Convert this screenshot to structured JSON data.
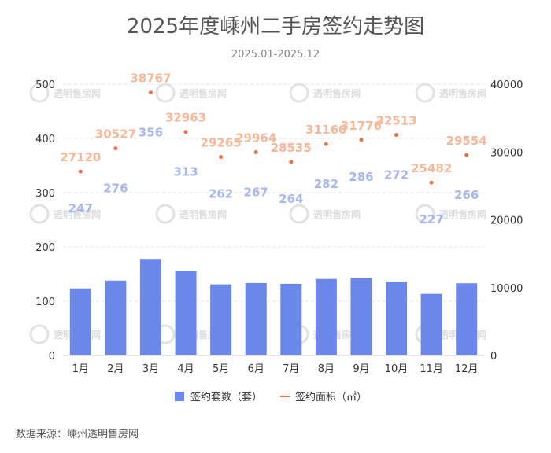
{
  "chart_data": {
    "type": "bar",
    "title": "2025年度嵊州二手房签约走势图",
    "subtitle": "2025.01-2025.12",
    "categories": [
      "1月",
      "2月",
      "3月",
      "4月",
      "5月",
      "6月",
      "7月",
      "8月",
      "9月",
      "10月",
      "11月",
      "12月"
    ],
    "series": [
      {
        "name": "签约套数（套）",
        "type": "bar",
        "axis": "left",
        "values": [
          247,
          276,
          356,
          313,
          262,
          267,
          264,
          282,
          286,
          272,
          227,
          266
        ]
      },
      {
        "name": "签约面积（㎡）",
        "type": "scatter",
        "axis": "right",
        "values": [
          27120,
          30527,
          38767,
          32963,
          29265,
          29964,
          28535,
          31160,
          31776,
          32513,
          25482,
          29554
        ]
      }
    ],
    "y_left": {
      "min": 0,
      "max": 500,
      "ticks": [
        0,
        100,
        200,
        300,
        400,
        500
      ]
    },
    "y_right": {
      "min": 0,
      "max": 40000,
      "ticks": [
        0,
        10000,
        20000,
        30000,
        40000
      ]
    },
    "grid": true,
    "legend_position": "bottom",
    "colors": {
      "bar": "#6b87ea",
      "dot": "#e8734a",
      "bar_label": "#a9b8f0",
      "dot_label": "#f5b89a",
      "title": "#555555",
      "grid": "#e6e6e6"
    },
    "source": "数据来源：嵊州透明售房网",
    "watermark": "透明售房网"
  }
}
